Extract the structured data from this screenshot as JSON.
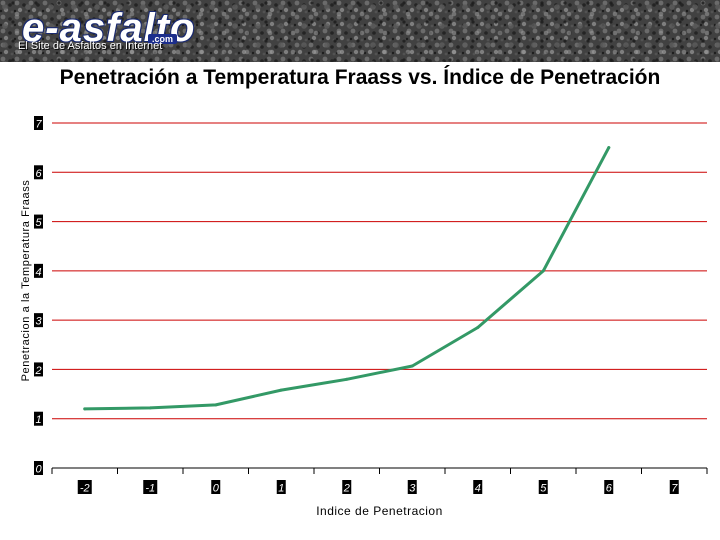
{
  "header": {
    "logo_text": "e-asfalto",
    "logo_suffix": ".com",
    "tagline": "El Site de Asfaltos en Internet"
  },
  "colors": {
    "grid": "#cc0000",
    "series": "#339966",
    "tick_label_bg": "#000000",
    "tick_label_fg": "#ffffff"
  },
  "chart_data": {
    "type": "line",
    "title": "Penetración a Temperatura Fraass vs. Índice de Penetración",
    "xlabel": "Indice de Penetracion",
    "ylabel": "Penetracion a la Temperatura Fraass",
    "x_ticks": [
      "-2",
      "-1",
      "0",
      "1",
      "2",
      "3",
      "4",
      "5",
      "6",
      "7"
    ],
    "y_ticks": [
      "0",
      "1",
      "2",
      "3",
      "4",
      "5",
      "6",
      "7"
    ],
    "xlim": [
      -2,
      7
    ],
    "ylim": [
      0,
      7
    ],
    "grid": true,
    "series": [
      {
        "x": [
          -2,
          -1,
          0,
          1,
          2,
          3,
          4,
          5,
          6
        ],
        "y": [
          1.2,
          1.22,
          1.28,
          1.58,
          1.8,
          2.07,
          2.85,
          4.0,
          6.5
        ]
      }
    ]
  }
}
